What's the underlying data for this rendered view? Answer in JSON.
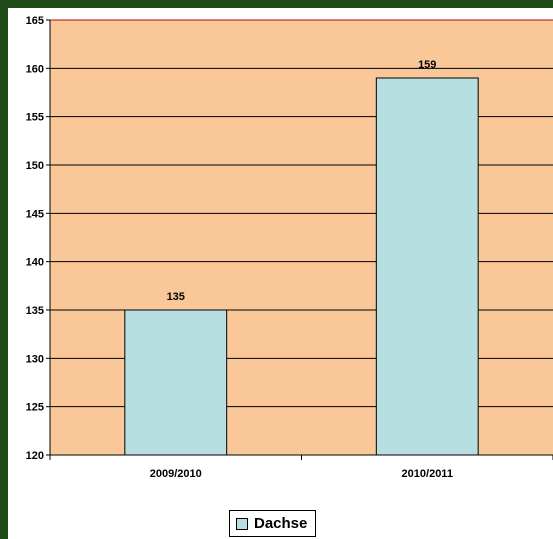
{
  "chart_data": {
    "type": "bar",
    "categories": [
      "2009/2010",
      "2010/2011"
    ],
    "series": [
      {
        "name": "Dachse",
        "values": [
          135,
          159
        ]
      }
    ],
    "ylim": [
      120,
      165
    ],
    "yticks": [
      120,
      125,
      130,
      135,
      140,
      145,
      150,
      155,
      160,
      165
    ],
    "grid": true,
    "legend": "bottom",
    "colors": {
      "plot_background": "#fac898",
      "bar_fill": "#b7dee0",
      "page_background": "#1f4a1a"
    }
  }
}
